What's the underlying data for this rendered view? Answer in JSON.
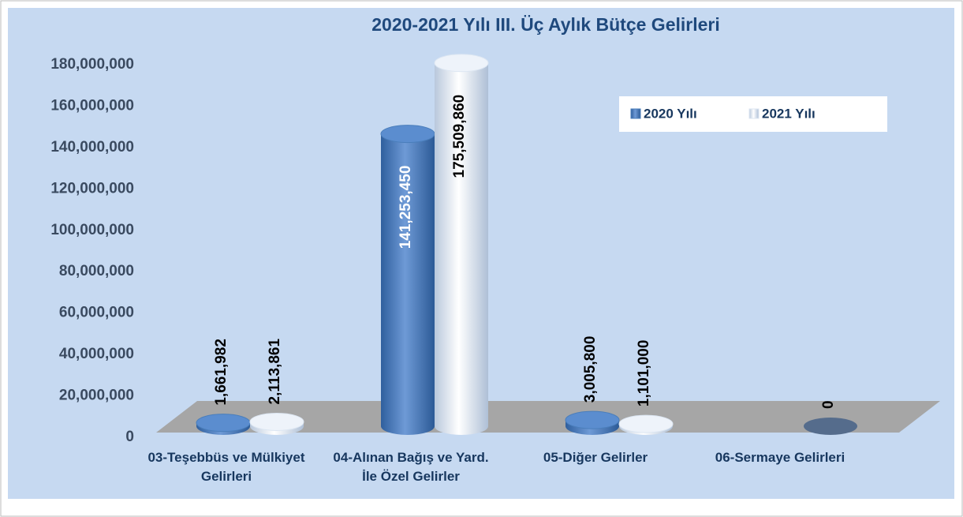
{
  "chart_data": {
    "type": "bar",
    "title": "2020-2021 Yılı III. Üç Aylık Bütçe Gelirleri",
    "categories": [
      "03-Teşebbüs ve Mülkiyet Gelirleri",
      "04-Alınan Bağış ve Yard. İle Özel Gelirler",
      "05-Diğer Gelirler",
      "06-Sermaye Gelirleri"
    ],
    "series": [
      {
        "name": "2020 Yılı",
        "color": "#4a7ebb",
        "values": [
          1661982,
          141253450,
          3005800,
          null
        ],
        "value_labels": [
          "1,661,982",
          "141,253,450",
          "3,005,800",
          null
        ]
      },
      {
        "name": "2021 Yılı",
        "color": "#dce6f2",
        "values": [
          2113861,
          175509860,
          1101000,
          0
        ],
        "value_labels": [
          "2,113,861",
          "175,509,860",
          "1,101,000",
          "0"
        ]
      }
    ],
    "ylim": [
      0,
      180000000
    ],
    "yticks": [
      0,
      {
        "value": 20000000,
        "label": "20,000,000"
      },
      {
        "value": 40000000,
        "label": "40,000,000"
      },
      {
        "value": 60000000,
        "label": "60,000,000"
      },
      {
        "value": 80000000,
        "label": "80,000,000"
      },
      {
        "value": 100000000,
        "label": "100,000,000"
      },
      {
        "value": 120000000,
        "label": "120,000,000"
      },
      {
        "value": 140000000,
        "label": "140,000,000"
      },
      {
        "value": 160000000,
        "label": "160,000,000"
      },
      {
        "value": 180000000,
        "label": "180,000,000"
      }
    ],
    "legend": "top-right"
  }
}
